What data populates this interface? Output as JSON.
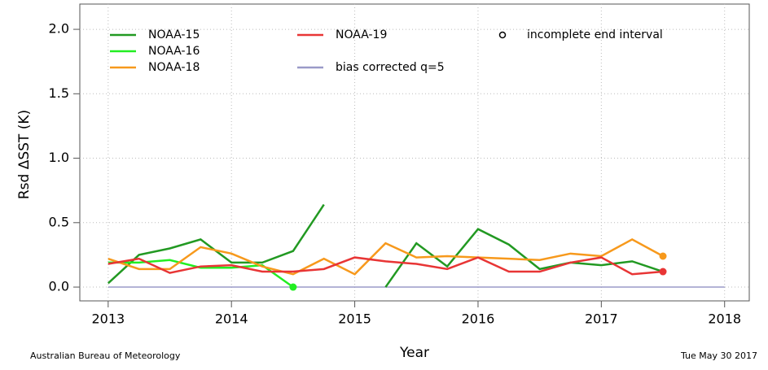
{
  "chart_data": {
    "type": "line",
    "xlabel": "Year",
    "ylabel": "Rsd ΔSST (K)",
    "xlim": [
      2012.77,
      2018.2
    ],
    "ylim": [
      -0.107,
      2.196
    ],
    "xticks": [
      2013,
      2014,
      2015,
      2016,
      2017,
      2018
    ],
    "yticks": [
      {
        "value": 0,
        "label": "0.0"
      },
      {
        "value": 0.5,
        "label": "0.5"
      },
      {
        "value": 1,
        "label": "1.0"
      },
      {
        "value": 1.5,
        "label": "1.5"
      },
      {
        "value": 2,
        "label": "2.0"
      }
    ],
    "grid": true,
    "series": [
      {
        "name": "NOAA-15",
        "color": "#229922",
        "incomplete_end": false,
        "x": [
          2013,
          2013.25,
          2013.5,
          2013.75,
          2014,
          2014.25,
          2014.5,
          2014.75,
          2015,
          2015.25,
          2015.5,
          2015.75,
          2016,
          2016.25,
          2016.5,
          2016.75,
          2017,
          2017.25,
          2017.5
        ],
        "values": [
          0.03,
          0.25,
          0.3,
          0.37,
          0.19,
          0.19,
          0.28,
          0.64,
          null,
          0.0,
          0.34,
          0.16,
          0.45,
          0.33,
          0.14,
          0.19,
          0.17,
          0.2,
          0.12
        ]
      },
      {
        "name": "NOAA-16",
        "color": "#22ee22",
        "incomplete_end": true,
        "x": [
          2013,
          2013.25,
          2013.5,
          2013.75,
          2014,
          2014.25,
          2014.5
        ],
        "values": [
          0.19,
          0.19,
          0.21,
          0.15,
          0.15,
          0.17,
          0.0
        ]
      },
      {
        "name": "NOAA-18",
        "color": "#f7991c",
        "incomplete_end": true,
        "x": [
          2013,
          2013.25,
          2013.5,
          2013.75,
          2014,
          2014.25,
          2014.5,
          2014.75,
          2015,
          2015.25,
          2015.5,
          2015.75,
          2016,
          2016.25,
          2016.5,
          2016.75,
          2017,
          2017.25,
          2017.5
        ],
        "values": [
          0.22,
          0.14,
          0.14,
          0.31,
          0.26,
          0.16,
          0.1,
          0.22,
          0.1,
          0.34,
          0.23,
          0.24,
          0.23,
          0.22,
          0.21,
          0.26,
          0.24,
          0.37,
          0.24
        ]
      },
      {
        "name": "NOAA-19",
        "color": "#e83535",
        "incomplete_end": true,
        "x": [
          2013,
          2013.25,
          2013.5,
          2013.75,
          2014,
          2014.25,
          2014.5,
          2014.75,
          2015,
          2015.25,
          2015.5,
          2015.75,
          2016,
          2016.25,
          2016.5,
          2016.75,
          2017,
          2017.25,
          2017.5
        ],
        "values": [
          0.18,
          0.22,
          0.11,
          0.16,
          0.17,
          0.12,
          0.12,
          0.14,
          0.23,
          0.2,
          0.18,
          0.14,
          0.23,
          0.12,
          0.12,
          0.19,
          0.23,
          0.1,
          0.12
        ]
      },
      {
        "name": "bias corrected q=5",
        "color": "#9a9ac8",
        "incomplete_end": false,
        "x": [
          2013,
          2018
        ],
        "values": [
          0,
          0
        ]
      }
    ],
    "end_marker_label": "incomplete end interval",
    "footer_left": "Australian Bureau of Meteorology",
    "footer_right": "Tue May 30 2017"
  }
}
